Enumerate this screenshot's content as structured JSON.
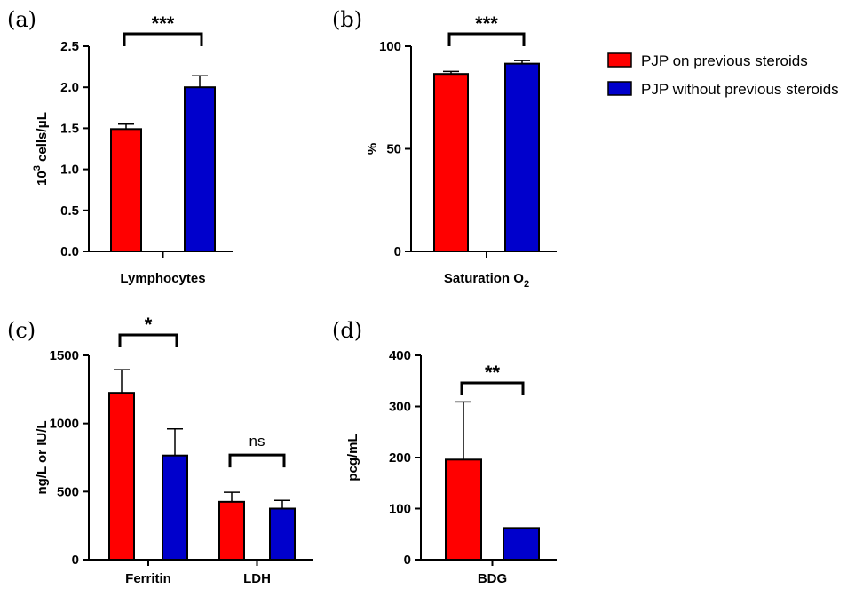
{
  "colors": {
    "red": "#ff0000",
    "blue": "#0000cc"
  },
  "legend": {
    "placement": "top-right",
    "entries": [
      {
        "label": "PJP on previous steroids",
        "color": "#ff0000"
      },
      {
        "label": "PJP without previous steroids",
        "color": "#0000cc"
      }
    ]
  },
  "chart_data": [
    {
      "id": "a",
      "panel_label": "(a)",
      "type": "bar",
      "ylabel_main": "10",
      "ylabel_sup": "3",
      "ylabel_rest": " cells/μL",
      "ylim": [
        0,
        2.5
      ],
      "yticks": [
        "0.0",
        "0.5",
        "1.0",
        "1.5",
        "2.0",
        "2.5"
      ],
      "grid": false,
      "groups": [
        {
          "label_main": "Lymphocytes",
          "label_sub": "",
          "bars": [
            {
              "series": "PJP on previous steroids",
              "value": 1.49,
              "error": 0.06
            },
            {
              "series": "PJP without previous steroids",
              "value": 2.0,
              "error": 0.14
            }
          ],
          "significance": "***"
        }
      ]
    },
    {
      "id": "b",
      "panel_label": "(b)",
      "type": "bar",
      "ylabel_main": "%",
      "ylabel_sup": "",
      "ylabel_rest": "",
      "ylim": [
        0,
        100
      ],
      "yticks": [
        "0",
        "50",
        "100"
      ],
      "grid": false,
      "groups": [
        {
          "label_main": "Saturation O",
          "label_sub": "2",
          "bars": [
            {
              "series": "PJP on previous steroids",
              "value": 86.5,
              "error": 1.2
            },
            {
              "series": "PJP without previous steroids",
              "value": 91.5,
              "error": 1.5
            }
          ],
          "significance": "***"
        }
      ]
    },
    {
      "id": "c",
      "panel_label": "(c)",
      "type": "bar",
      "ylabel_main": "ng/L or IU/L",
      "ylabel_sup": "",
      "ylabel_rest": "",
      "ylim": [
        0,
        1500
      ],
      "yticks": [
        "0",
        "500",
        "1000",
        "1500"
      ],
      "grid": false,
      "groups": [
        {
          "label_main": "Ferritin",
          "label_sub": "",
          "bars": [
            {
              "series": "PJP on previous steroids",
              "value": 1225,
              "error": 170
            },
            {
              "series": "PJP without previous steroids",
              "value": 765,
              "error": 195
            }
          ],
          "significance": "*"
        },
        {
          "label_main": "LDH",
          "label_sub": "",
          "bars": [
            {
              "series": "PJP on previous steroids",
              "value": 425,
              "error": 70
            },
            {
              "series": "PJP without previous steroids",
              "value": 375,
              "error": 60
            }
          ],
          "significance": "ns"
        }
      ]
    },
    {
      "id": "d",
      "panel_label": "(d)",
      "type": "bar",
      "ylabel_main": "pcg/mL",
      "ylabel_sup": "",
      "ylabel_rest": "",
      "ylim": [
        0,
        400
      ],
      "yticks": [
        "0",
        "100",
        "200",
        "300",
        "400"
      ],
      "grid": false,
      "groups": [
        {
          "label_main": "BDG",
          "label_sub": "",
          "bars": [
            {
              "series": "PJP on previous steroids",
              "value": 196,
              "error": 113
            },
            {
              "series": "PJP without previous steroids",
              "value": 62,
              "error": 0
            }
          ],
          "significance": "**"
        }
      ]
    }
  ]
}
